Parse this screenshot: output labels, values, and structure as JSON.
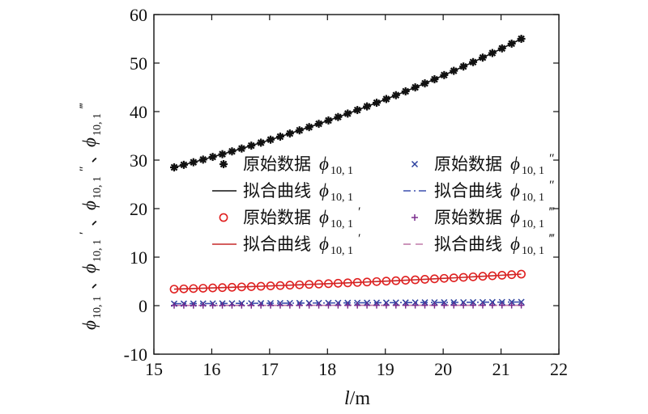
{
  "chart_data": {
    "type": "line",
    "xlabel": {
      "italic": "l",
      "rest": "/m"
    },
    "ylabel": {
      "symbol": "ϕ",
      "parts": [
        {
          "sub": "10, 1",
          "sup": ""
        },
        {
          "sub": "10, 1",
          "sup": "′"
        },
        {
          "sub": "10, 1",
          "sup": "″"
        },
        {
          "sub": "10, 1",
          "sup": "‴"
        }
      ],
      "separator": "、"
    },
    "xlim": [
      15,
      22
    ],
    "ylim": [
      -10,
      60
    ],
    "x_ticks": [
      "15",
      "16",
      "17",
      "18",
      "19",
      "20",
      "21",
      "22"
    ],
    "y_ticks": [
      "-10",
      "0",
      "10",
      "20",
      "30",
      "40",
      "50",
      "60"
    ],
    "x_range": [
      15.35,
      21.35
    ],
    "n_points": 37,
    "series": [
      {
        "name": "原始数据 ϕ10, 1",
        "kind": "markers",
        "marker": "star",
        "color": "#111111",
        "y_start": 28.5,
        "y_end": 55.0,
        "growth": "exp"
      },
      {
        "name": "拟合曲线 ϕ10, 1",
        "kind": "line",
        "dash": "solid",
        "color": "#111111",
        "y_start": 28.5,
        "y_end": 55.0,
        "growth": "exp"
      },
      {
        "name": "原始数据 ϕ10, 1′",
        "kind": "markers",
        "marker": "circle",
        "color": "#e02020",
        "y_start": 3.4,
        "y_end": 6.5,
        "growth": "exp"
      },
      {
        "name": "拟合曲线 ϕ10, 1′",
        "kind": "line",
        "dash": "solid",
        "color": "#c62828",
        "y_start": 3.4,
        "y_end": 6.5,
        "growth": "exp"
      },
      {
        "name": "原始数据 ϕ10, 1″",
        "kind": "markers",
        "marker": "x",
        "color": "#2b3f9e",
        "y_start": 0.4,
        "y_end": 0.75,
        "growth": "linear"
      },
      {
        "name": "拟合曲线 ϕ10, 1″",
        "kind": "line",
        "dash": "dashdot",
        "color": "#3b4fae",
        "y_start": 0.4,
        "y_end": 0.75,
        "growth": "linear"
      },
      {
        "name": "原始数据 ϕ10, 1‴",
        "kind": "markers",
        "marker": "plus",
        "color": "#7b2d8e",
        "y_start": 0.05,
        "y_end": 0.08,
        "growth": "linear"
      },
      {
        "name": "拟合曲线 ϕ10, 1‴",
        "kind": "line",
        "dash": "dashed",
        "color": "#c07aa8",
        "y_start": 0.05,
        "y_end": 0.08,
        "growth": "linear"
      }
    ],
    "legend": {
      "placement": "center-right",
      "items": [
        {
          "series": 0,
          "label": "原始数据",
          "sup": ""
        },
        {
          "series": 4,
          "label": "原始数据",
          "sup": "″"
        },
        {
          "series": 1,
          "label": "拟合曲线",
          "sup": ""
        },
        {
          "series": 5,
          "label": "拟合曲线",
          "sup": "″"
        },
        {
          "series": 2,
          "label": "原始数据",
          "sup": "′"
        },
        {
          "series": 6,
          "label": "原始数据",
          "sup": "‴"
        },
        {
          "series": 3,
          "label": "拟合曲线",
          "sup": "′"
        },
        {
          "series": 7,
          "label": "拟合曲线",
          "sup": "‴"
        }
      ],
      "symbol": "ϕ",
      "sub": "10, 1"
    },
    "grid": false
  }
}
